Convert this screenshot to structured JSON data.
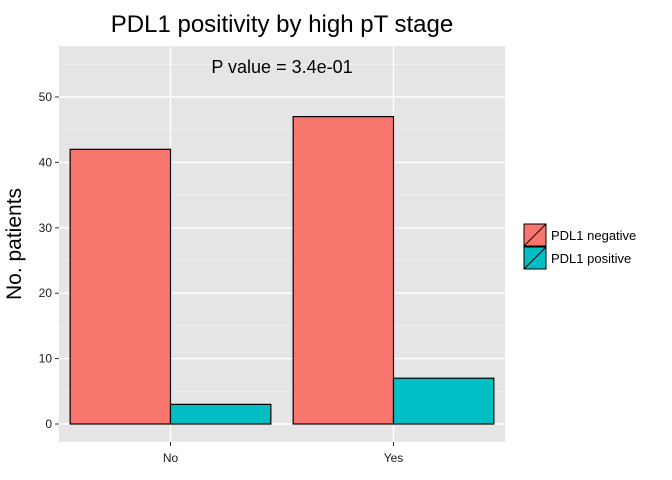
{
  "chart_data": {
    "type": "bar",
    "title": "PDL1 positivity by high pT stage",
    "annotation": "P value = 3.4e-01",
    "xlabel": "",
    "ylabel": "No. patients",
    "categories": [
      "No",
      "Yes"
    ],
    "series": [
      {
        "name": "PDL1 negative",
        "values": [
          42,
          47
        ],
        "color": "#F8766D"
      },
      {
        "name": "PDL1 positive",
        "values": [
          3,
          7
        ],
        "color": "#00BFC4"
      }
    ],
    "ylim": [
      0,
      55
    ],
    "yticks": [
      0,
      10,
      20,
      30,
      40,
      50
    ],
    "grid": true,
    "panel_background": "#E5E5E5",
    "legend_position": "right"
  }
}
